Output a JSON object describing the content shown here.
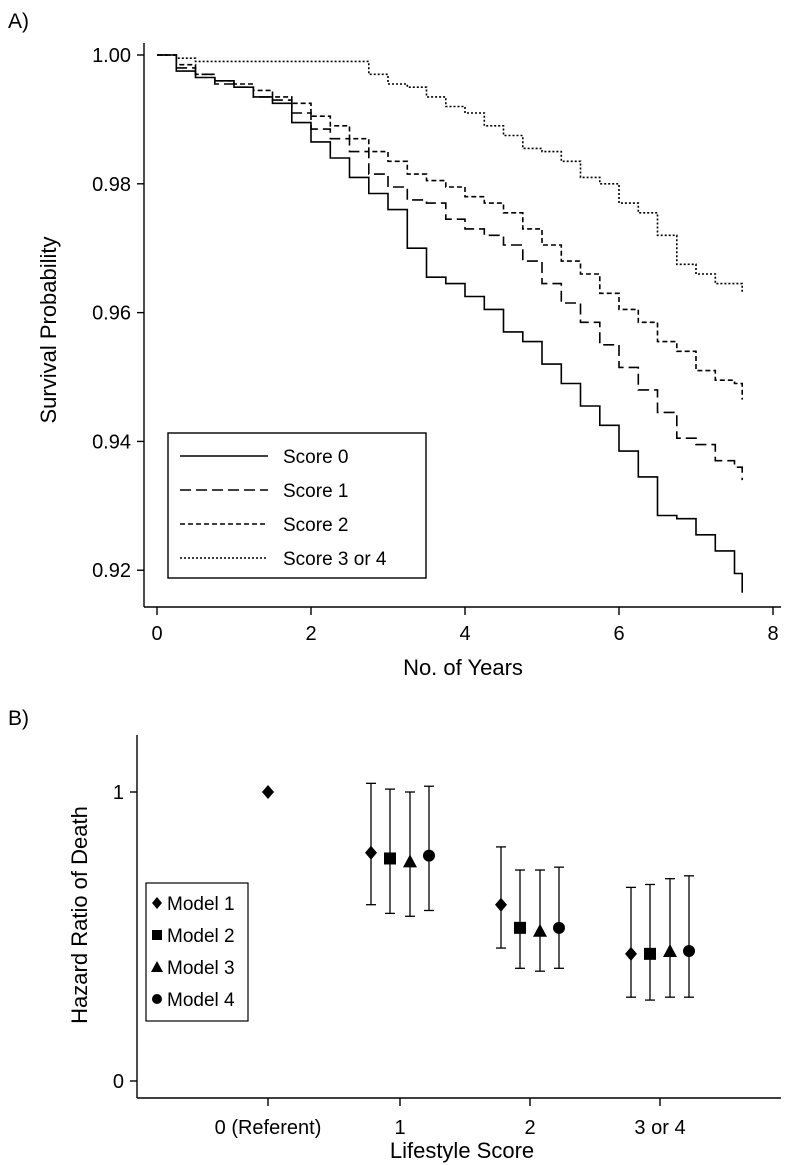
{
  "panel_a_label": "A)",
  "panel_b_label": "B)",
  "chart_data": [
    {
      "type": "line",
      "title": "",
      "xlabel": "No. of Years",
      "ylabel": "Survival Probability",
      "xlim": [
        0,
        8
      ],
      "ylim": [
        0.916,
        1.0
      ],
      "xticks": [
        "0",
        "2",
        "4",
        "6",
        "8"
      ],
      "xtick_values": [
        0,
        2,
        4,
        6,
        8
      ],
      "yticks": [
        "0.92",
        "0.94",
        "0.96",
        "0.98",
        "1.00"
      ],
      "ytick_values": [
        0.92,
        0.94,
        0.96,
        0.98,
        1.0
      ],
      "legend_position": "bottom-left",
      "series": [
        {
          "name": "Score 0",
          "style": "solid",
          "x": [
            0,
            0.25,
            0.5,
            0.75,
            1.0,
            1.25,
            1.5,
            1.75,
            2.0,
            2.25,
            2.5,
            2.75,
            3.0,
            3.25,
            3.5,
            3.75,
            4.0,
            4.25,
            4.5,
            4.75,
            5.0,
            5.25,
            5.5,
            5.75,
            6.0,
            6.25,
            6.5,
            6.75,
            7.0,
            7.25,
            7.5,
            7.6
          ],
          "y": [
            1.0,
            0.9975,
            0.9965,
            0.996,
            0.995,
            0.9935,
            0.9925,
            0.9895,
            0.9865,
            0.984,
            0.981,
            0.9785,
            0.976,
            0.97,
            0.9655,
            0.9645,
            0.9625,
            0.9605,
            0.957,
            0.9555,
            0.952,
            0.949,
            0.9455,
            0.9425,
            0.9385,
            0.9345,
            0.9285,
            0.928,
            0.9255,
            0.923,
            0.9195,
            0.9165
          ]
        },
        {
          "name": "Score 1",
          "style": "long-dash",
          "x": [
            0,
            0.25,
            0.5,
            0.75,
            1.0,
            1.25,
            1.5,
            1.75,
            2.0,
            2.25,
            2.5,
            2.75,
            3.0,
            3.25,
            3.5,
            3.75,
            4.0,
            4.25,
            4.5,
            4.75,
            5.0,
            5.25,
            5.5,
            5.75,
            6.0,
            6.25,
            6.5,
            6.75,
            7.0,
            7.25,
            7.5,
            7.6
          ],
          "y": [
            1.0,
            0.998,
            0.997,
            0.9955,
            0.995,
            0.9935,
            0.993,
            0.991,
            0.9885,
            0.987,
            0.985,
            0.9815,
            0.9795,
            0.9775,
            0.977,
            0.9745,
            0.973,
            0.972,
            0.9705,
            0.968,
            0.9645,
            0.9615,
            0.9585,
            0.955,
            0.9515,
            0.948,
            0.9445,
            0.9405,
            0.9395,
            0.937,
            0.936,
            0.934
          ]
        },
        {
          "name": "Score 2",
          "style": "short-dash",
          "x": [
            0,
            0.25,
            0.5,
            0.75,
            1.0,
            1.25,
            1.5,
            1.75,
            2.0,
            2.25,
            2.5,
            2.75,
            3.0,
            3.25,
            3.5,
            3.75,
            4.0,
            4.25,
            4.5,
            4.75,
            5.0,
            5.25,
            5.5,
            5.75,
            6.0,
            6.25,
            6.5,
            6.75,
            7.0,
            7.25,
            7.5,
            7.6
          ],
          "y": [
            1.0,
            0.9985,
            0.997,
            0.996,
            0.9955,
            0.9945,
            0.9935,
            0.9925,
            0.9905,
            0.989,
            0.987,
            0.985,
            0.9835,
            0.9815,
            0.9805,
            0.9795,
            0.978,
            0.977,
            0.9755,
            0.973,
            0.9705,
            0.968,
            0.966,
            0.963,
            0.9605,
            0.9585,
            0.9555,
            0.954,
            0.951,
            0.9495,
            0.949,
            0.9465
          ]
        },
        {
          "name": "Score 3 or 4",
          "style": "dotted",
          "x": [
            0,
            0.25,
            0.5,
            0.75,
            1.0,
            1.25,
            1.5,
            1.75,
            2.0,
            2.25,
            2.5,
            2.75,
            3.0,
            3.25,
            3.5,
            3.75,
            4.0,
            4.25,
            4.5,
            4.75,
            5.0,
            5.25,
            5.5,
            5.75,
            6.0,
            6.25,
            6.5,
            6.75,
            7.0,
            7.25,
            7.5,
            7.6
          ],
          "y": [
            1.0,
            0.9995,
            0.999,
            0.999,
            0.999,
            0.999,
            0.999,
            0.999,
            0.999,
            0.999,
            0.999,
            0.997,
            0.9955,
            0.995,
            0.9935,
            0.992,
            0.991,
            0.989,
            0.9875,
            0.9855,
            0.985,
            0.9835,
            0.981,
            0.98,
            0.977,
            0.9755,
            0.972,
            0.9675,
            0.966,
            0.9645,
            0.9645,
            0.963
          ]
        }
      ]
    },
    {
      "type": "scatter",
      "title": "",
      "xlabel": "Lifestyle Score",
      "ylabel": "Hazard Ratio of Death",
      "categories": [
        "0 (Referent)",
        "1",
        "2",
        "3 or 4"
      ],
      "yticks": [
        "0",
        "1"
      ],
      "ytick_values": [
        0,
        1
      ],
      "ylim": [
        0,
        1.2
      ],
      "legend_position": "bottom-left",
      "series": [
        {
          "name": "Model 1",
          "marker": "diamond",
          "values": [
            1.0,
            0.79,
            0.61,
            0.44
          ],
          "lower": [
            null,
            0.61,
            0.46,
            0.29
          ],
          "upper": [
            null,
            1.03,
            0.81,
            0.67
          ]
        },
        {
          "name": "Model 2",
          "marker": "square",
          "values": [
            null,
            0.77,
            0.53,
            0.44
          ],
          "lower": [
            null,
            0.58,
            0.39,
            0.28
          ],
          "upper": [
            null,
            1.01,
            0.73,
            0.68
          ]
        },
        {
          "name": "Model 3",
          "marker": "triangle",
          "values": [
            null,
            0.76,
            0.52,
            0.45
          ],
          "lower": [
            null,
            0.57,
            0.38,
            0.29
          ],
          "upper": [
            null,
            1.0,
            0.73,
            0.7
          ]
        },
        {
          "name": "Model 4",
          "marker": "circle",
          "values": [
            null,
            0.78,
            0.53,
            0.45
          ],
          "lower": [
            null,
            0.59,
            0.39,
            0.29
          ],
          "upper": [
            null,
            1.02,
            0.74,
            0.71
          ]
        }
      ]
    }
  ]
}
